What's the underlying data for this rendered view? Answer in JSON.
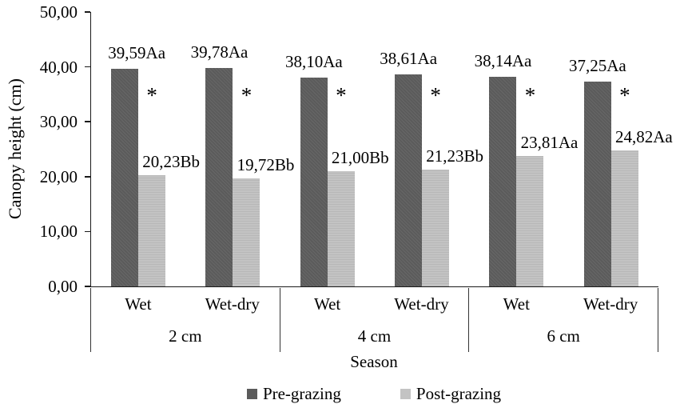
{
  "chart_data": {
    "type": "bar",
    "ylabel": "Canopy height (cm)",
    "xlabel": "Season",
    "ylim": [
      0,
      50
    ],
    "ytick_step": 10,
    "yticks": [
      "0,00",
      "10,00",
      "20,00",
      "30,00",
      "40,00",
      "50,00"
    ],
    "grid": false,
    "legend_position": "bottom",
    "series_names": [
      "Pre-grazing",
      "Post-grazing"
    ],
    "series_colors": [
      "#5b5b5b",
      "#c3c3c3"
    ],
    "groups": [
      {
        "label": "2 cm",
        "bars": [
          {
            "season": "Wet",
            "pre_value": 39.59,
            "pre_label": "39,59Aa",
            "post_value": 20.23,
            "post_label": "20,23Bb",
            "significance": "*"
          },
          {
            "season": "Wet-dry",
            "pre_value": 39.78,
            "pre_label": "39,78Aa",
            "post_value": 19.72,
            "post_label": "19,72Bb",
            "significance": "*"
          }
        ]
      },
      {
        "label": "4 cm",
        "bars": [
          {
            "season": "Wet",
            "pre_value": 38.1,
            "pre_label": "38,10Aa",
            "post_value": 21.0,
            "post_label": "21,00Bb",
            "significance": "*"
          },
          {
            "season": "Wet-dry",
            "pre_value": 38.61,
            "pre_label": "38,61Aa",
            "post_value": 21.23,
            "post_label": "21,23Bb",
            "significance": "*"
          }
        ]
      },
      {
        "label": "6 cm",
        "bars": [
          {
            "season": "Wet",
            "pre_value": 38.14,
            "pre_label": "38,14Aa",
            "post_value": 23.81,
            "post_label": "23,81Aa",
            "significance": "*"
          },
          {
            "season": "Wet-dry",
            "pre_value": 37.25,
            "pre_label": "37,25Aa",
            "post_value": 24.82,
            "post_label": "24,82Aa",
            "significance": "*"
          }
        ]
      }
    ]
  }
}
